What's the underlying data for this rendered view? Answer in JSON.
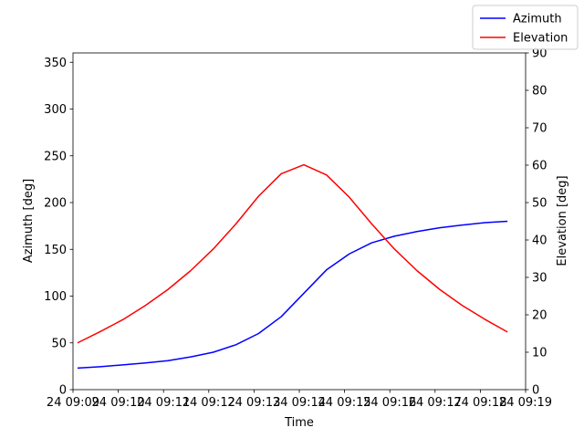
{
  "chart_data": {
    "type": "line",
    "title": "",
    "xlabel": "Time",
    "ylabel_left": "Azimuth [deg]",
    "ylabel_right": "Elevation [deg]",
    "x_tick_labels": [
      "24 09:09",
      "24 09:10",
      "24 09:11",
      "24 09:12",
      "24 09:13",
      "24 09:14",
      "24 09:15",
      "24 09:16",
      "24 09:17",
      "24 09:18",
      "24 09:19"
    ],
    "x_minutes": [
      9.1,
      9.6,
      10.1,
      10.6,
      11.1,
      11.6,
      12.1,
      12.6,
      13.1,
      13.6,
      14.1,
      14.6,
      15.1,
      15.6,
      16.1,
      16.6,
      17.1,
      17.6,
      18.1,
      18.6
    ],
    "xlim_minutes": [
      9,
      19
    ],
    "ylim_left": [
      0,
      360
    ],
    "yticks_left": [
      0,
      50,
      100,
      150,
      200,
      250,
      300,
      350
    ],
    "ylim_right": [
      0,
      90
    ],
    "yticks_right": [
      0,
      10,
      20,
      30,
      40,
      50,
      60,
      70,
      80,
      90
    ],
    "legend_position": "top-right",
    "grid": false,
    "series": [
      {
        "name": "Azimuth",
        "axis": "left",
        "color": "#0000ff",
        "values": [
          23,
          24.5,
          26.5,
          28.5,
          31,
          35,
          40,
          48,
          60,
          78,
          103,
          128,
          145,
          157,
          164,
          169,
          173,
          176,
          178.5,
          180
        ]
      },
      {
        "name": "Elevation",
        "axis": "right",
        "color": "#ff0000",
        "values": [
          12.5,
          15.5,
          18.7,
          22.5,
          26.8,
          31.8,
          37.6,
          44.3,
          51.7,
          57.7,
          60.1,
          57.4,
          51.5,
          44.3,
          37.6,
          31.8,
          26.8,
          22.5,
          18.8,
          15.4
        ]
      }
    ]
  }
}
